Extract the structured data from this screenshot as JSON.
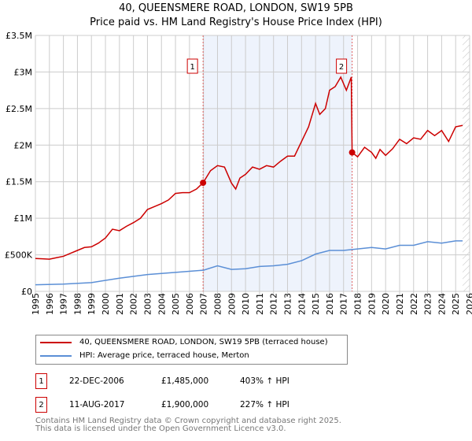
{
  "title": "40, QUEENSMERE ROAD, LONDON, SW19 5PB",
  "subtitle": "Price paid vs. HM Land Registry's House Price Index (HPI)",
  "chart_data": {
    "type": "line",
    "xlim": [
      1995,
      2026
    ],
    "ylim": [
      0,
      3500000
    ],
    "yticks": [
      {
        "v": 0,
        "label": "£0"
      },
      {
        "v": 500000,
        "label": "£500K"
      },
      {
        "v": 1000000,
        "label": "£1M"
      },
      {
        "v": 1500000,
        "label": "£1.5M"
      },
      {
        "v": 2000000,
        "label": "£2M"
      },
      {
        "v": 2500000,
        "label": "£2.5M"
      },
      {
        "v": 3000000,
        "label": "£3M"
      },
      {
        "v": 3500000,
        "label": "£3.5M"
      }
    ],
    "xticks": [
      "1995",
      "1996",
      "1997",
      "1998",
      "1999",
      "2000",
      "2001",
      "2002",
      "2003",
      "2004",
      "2005",
      "2006",
      "2007",
      "2008",
      "2009",
      "2010",
      "2011",
      "2012",
      "2013",
      "2014",
      "2015",
      "2016",
      "2017",
      "2018",
      "2019",
      "2020",
      "2021",
      "2022",
      "2023",
      "2024",
      "2025",
      "2026"
    ],
    "shaded_range": [
      2006.97,
      2017.61
    ],
    "future_hatch_from": 2025.5,
    "series": [
      {
        "name": "40, QUEENSMERE ROAD, LONDON, SW19 5PB (terraced house)",
        "color": "#cc0000",
        "x": [
          1995,
          1995.5,
          1996,
          1996.5,
          1997,
          1997.5,
          1998,
          1998.5,
          1999,
          1999.5,
          2000,
          2000.5,
          2001,
          2001.5,
          2002,
          2002.5,
          2003,
          2003.5,
          2004,
          2004.5,
          2005,
          2005.5,
          2006,
          2006.5,
          2006.97,
          2007.5,
          2008,
          2008.5,
          2009,
          2009.3,
          2009.6,
          2010,
          2010.5,
          2011,
          2011.5,
          2012,
          2012.5,
          2013,
          2013.5,
          2014,
          2014.5,
          2015,
          2015.3,
          2015.7,
          2016,
          2016.4,
          2016.8,
          2017.2,
          2017.55,
          2017.61,
          2018,
          2018.5,
          2019,
          2019.3,
          2019.6,
          2020,
          2020.5,
          2021,
          2021.5,
          2022,
          2022.5,
          2023,
          2023.5,
          2024,
          2024.5,
          2025,
          2025.5
        ],
        "y": [
          450000,
          445000,
          440000,
          460000,
          480000,
          520000,
          560000,
          600000,
          610000,
          660000,
          730000,
          850000,
          830000,
          890000,
          940000,
          1000000,
          1120000,
          1160000,
          1200000,
          1250000,
          1340000,
          1350000,
          1350000,
          1400000,
          1485000,
          1650000,
          1720000,
          1700000,
          1480000,
          1400000,
          1550000,
          1600000,
          1700000,
          1670000,
          1720000,
          1700000,
          1780000,
          1850000,
          1850000,
          2050000,
          2250000,
          2570000,
          2420000,
          2500000,
          2750000,
          2800000,
          2930000,
          2750000,
          2930000,
          1900000,
          1840000,
          1970000,
          1900000,
          1820000,
          1940000,
          1860000,
          1950000,
          2080000,
          2020000,
          2100000,
          2080000,
          2200000,
          2130000,
          2200000,
          2050000,
          2250000,
          2270000
        ]
      },
      {
        "name": "HPI: Average price, terraced house, Merton",
        "color": "#5b8fd6",
        "x": [
          1995,
          1997,
          1999,
          2001,
          2003,
          2005,
          2007,
          2008,
          2009,
          2010,
          2011,
          2012,
          2013,
          2014,
          2015,
          2016,
          2017,
          2018,
          2019,
          2020,
          2021,
          2022,
          2023,
          2024,
          2025,
          2025.5
        ],
        "y": [
          90000,
          100000,
          120000,
          180000,
          230000,
          260000,
          290000,
          350000,
          300000,
          310000,
          340000,
          350000,
          370000,
          420000,
          510000,
          560000,
          560000,
          580000,
          600000,
          580000,
          630000,
          630000,
          680000,
          660000,
          690000,
          690000
        ]
      }
    ],
    "sales": [
      {
        "label": "1",
        "x": 2006.97,
        "y": 1485000
      },
      {
        "label": "2",
        "x": 2017.61,
        "y": 1900000
      }
    ]
  },
  "sales_table": [
    {
      "num": "1",
      "date": "22-DEC-2006",
      "price": "£1,485,000",
      "hpi": "403% ↑ HPI"
    },
    {
      "num": "2",
      "date": "11-AUG-2017",
      "price": "£1,900,000",
      "hpi": "227% ↑ HPI"
    }
  ],
  "footer": [
    "Contains HM Land Registry data © Crown copyright and database right 2025.",
    "This data is licensed under the Open Government Licence v3.0."
  ]
}
